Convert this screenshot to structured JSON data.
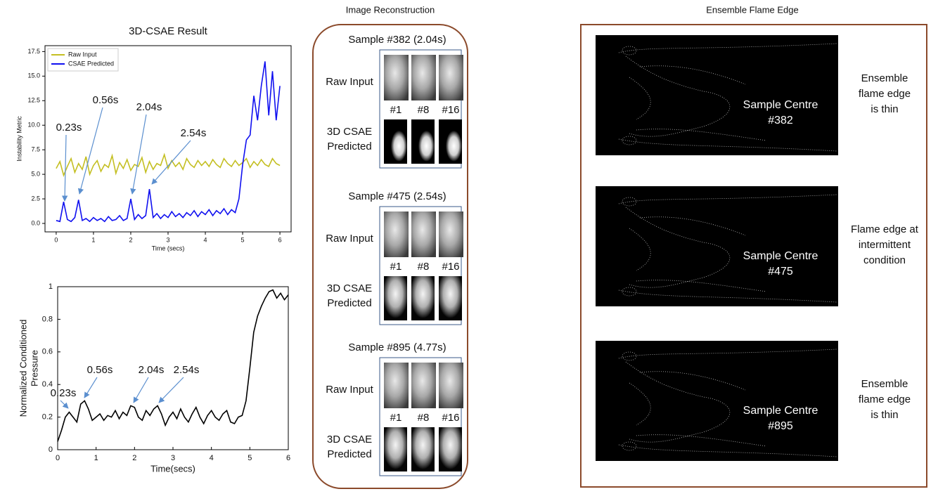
{
  "chart_data": [
    {
      "type": "line",
      "title": "3D-CSAE Result",
      "xlabel": "Time (secs)",
      "ylabel": "Instability Metric",
      "xlim": [
        -0.3,
        6.3
      ],
      "xticks": [
        0,
        1,
        2,
        3,
        4,
        5,
        6
      ],
      "ylim": [
        -0.86,
        18.1
      ],
      "yticks": [
        {
          "value": 0,
          "label": "0.0"
        },
        2.5,
        {
          "value": 5,
          "label": "5.0"
        },
        7.5,
        {
          "value": 10,
          "label": "10.0"
        },
        12.5,
        {
          "value": 15,
          "label": "15.0"
        },
        17.5
      ],
      "legend": "upper left",
      "x": [
        0,
        0.1,
        0.2,
        0.3,
        0.4,
        0.5,
        0.6,
        0.7,
        0.8,
        0.9,
        1,
        1.1,
        1.2,
        1.3,
        1.4,
        1.5,
        1.6,
        1.7,
        1.8,
        1.9,
        2,
        2.1,
        2.2,
        2.3,
        2.4,
        2.5,
        2.6,
        2.7,
        2.8,
        2.9,
        3,
        3.1,
        3.2,
        3.3,
        3.4,
        3.5,
        3.6,
        3.7,
        3.8,
        3.9,
        4,
        4.1,
        4.2,
        4.3,
        4.4,
        4.5,
        4.6,
        4.7,
        4.8,
        4.9,
        5,
        5.1,
        5.2,
        5.3,
        5.4,
        5.5,
        5.6,
        5.7,
        5.8,
        5.9,
        6
      ],
      "series": [
        {
          "name": "Raw Input",
          "color": "#c4bf22",
          "values": [
            5.6,
            6.3,
            4.9,
            5.8,
            6.6,
            5.2,
            6.1,
            5.5,
            6.8,
            5.0,
            5.9,
            6.4,
            5.3,
            6.0,
            5.7,
            6.9,
            5.1,
            6.2,
            5.6,
            6.5,
            5.4,
            6.0,
            5.8,
            6.7,
            5.2,
            6.3,
            5.5,
            6.1,
            5.9,
            7.0,
            5.6,
            6.4,
            5.8,
            6.2,
            5.5,
            6.6,
            6.0,
            5.7,
            6.4,
            5.9,
            6.3,
            5.8,
            6.5,
            6.0,
            5.7,
            6.6,
            6.1,
            5.8,
            6.4,
            5.9,
            6.2,
            6.6,
            5.7,
            6.3,
            5.9,
            6.5,
            6.0,
            5.8,
            6.6,
            6.1,
            5.9
          ]
        },
        {
          "name": "CSAE Predicted",
          "color": "#1010f0",
          "values": [
            0.3,
            0.2,
            2.2,
            0.4,
            0.2,
            0.6,
            2.4,
            0.3,
            0.5,
            0.2,
            0.6,
            0.3,
            0.5,
            0.2,
            0.7,
            0.3,
            0.4,
            0.8,
            0.3,
            0.5,
            2.5,
            0.4,
            0.9,
            0.5,
            0.8,
            3.5,
            0.6,
            1.0,
            0.5,
            0.9,
            0.6,
            1.2,
            0.7,
            1.0,
            0.6,
            1.1,
            0.8,
            1.3,
            0.7,
            1.2,
            0.9,
            1.4,
            0.8,
            1.3,
            1.0,
            1.5,
            0.9,
            1.4,
            1.1,
            2.5,
            6.0,
            8.5,
            9.0,
            13.0,
            10.5,
            14.0,
            16.5,
            11.0,
            15.5,
            10.5,
            14.0
          ]
        }
      ],
      "annotations": [
        "0.23s",
        "0.56s",
        "2.04s",
        "2.54s"
      ]
    },
    {
      "type": "line",
      "xlabel": "Time(secs)",
      "ylabel": [
        "Normalized Conditioned",
        "Pressure"
      ],
      "xlim": [
        0,
        6
      ],
      "xticks": [
        0,
        1,
        2,
        3,
        4,
        5,
        6
      ],
      "ylim": [
        0,
        1
      ],
      "yticks": [
        0,
        0.2,
        0.4,
        0.6,
        0.8,
        1
      ],
      "x": [
        0,
        0.1,
        0.2,
        0.3,
        0.4,
        0.5,
        0.6,
        0.7,
        0.8,
        0.9,
        1,
        1.1,
        1.2,
        1.3,
        1.4,
        1.5,
        1.6,
        1.7,
        1.8,
        1.9,
        2,
        2.1,
        2.2,
        2.3,
        2.4,
        2.5,
        2.6,
        2.7,
        2.8,
        2.9,
        3,
        3.1,
        3.2,
        3.3,
        3.4,
        3.5,
        3.6,
        3.7,
        3.8,
        3.9,
        4,
        4.1,
        4.2,
        4.3,
        4.4,
        4.5,
        4.6,
        4.7,
        4.8,
        4.9,
        5,
        5.1,
        5.2,
        5.3,
        5.4,
        5.5,
        5.6,
        5.7,
        5.8,
        5.9,
        6
      ],
      "series": [
        {
          "color": "#000000",
          "values": [
            0.05,
            0.12,
            0.2,
            0.23,
            0.2,
            0.17,
            0.28,
            0.3,
            0.25,
            0.18,
            0.2,
            0.22,
            0.18,
            0.21,
            0.2,
            0.24,
            0.19,
            0.23,
            0.21,
            0.27,
            0.26,
            0.2,
            0.18,
            0.24,
            0.21,
            0.25,
            0.27,
            0.22,
            0.15,
            0.2,
            0.23,
            0.19,
            0.25,
            0.2,
            0.17,
            0.22,
            0.26,
            0.2,
            0.16,
            0.21,
            0.24,
            0.2,
            0.18,
            0.22,
            0.24,
            0.17,
            0.16,
            0.2,
            0.21,
            0.3,
            0.5,
            0.72,
            0.82,
            0.88,
            0.93,
            0.97,
            0.98,
            0.93,
            0.96,
            0.92,
            0.95
          ]
        }
      ],
      "annotations": [
        "0.23s",
        "0.56s",
        "2.04s",
        "2.54s"
      ]
    }
  ],
  "image_reconstruction": {
    "title": "Image Reconstruction",
    "samples": [
      {
        "title": "Sample #382 (2.04s)",
        "raw_label": "Raw Input",
        "pred_label": [
          "3D CSAE",
          "Predicted"
        ],
        "frames": [
          "#1",
          "#8",
          "#16"
        ]
      },
      {
        "title": "Sample #475 (2.54s)",
        "raw_label": "Raw Input",
        "pred_label": [
          "3D CSAE",
          "Predicted"
        ],
        "frames": [
          "#1",
          "#8",
          "#16"
        ]
      },
      {
        "title": "Sample #895 (4.77s)",
        "raw_label": "Raw Input",
        "pred_label": [
          "3D CSAE",
          "Predicted"
        ],
        "frames": [
          "#1",
          "#8",
          "#16"
        ]
      }
    ]
  },
  "flame_edge": {
    "title": "Ensemble Flame Edge",
    "panels": [
      {
        "centre": [
          "Sample Centre",
          "#382"
        ],
        "note": [
          "Ensemble",
          "flame edge",
          "is thin"
        ]
      },
      {
        "centre": [
          "Sample Centre",
          "#475"
        ],
        "note": [
          "Flame edge at",
          "intermittent",
          "condition"
        ]
      },
      {
        "centre": [
          "Sample Centre",
          "#895"
        ],
        "note": [
          "Ensemble",
          "flame edge",
          "is thin"
        ]
      }
    ]
  }
}
